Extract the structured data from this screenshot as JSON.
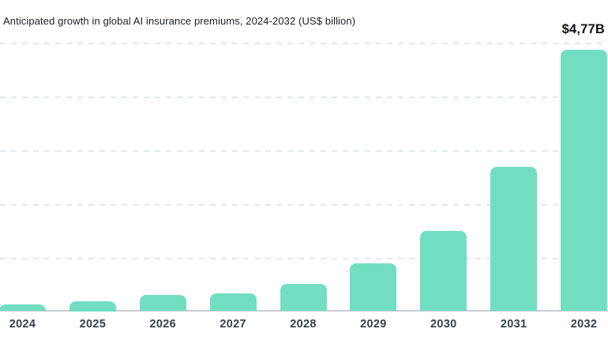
{
  "header": {
    "title": "Anticipated growth in global AI insurance premiums, 2024-2032 (US$ billion)",
    "peak_label": "$4,77B"
  },
  "chart_data": {
    "type": "bar",
    "title": "Anticipated growth in global AI insurance premiums, 2024-2032 (US$ billion)",
    "unit": "US$ billion",
    "categories": [
      "2024",
      "2025",
      "2026",
      "2027",
      "2028",
      "2029",
      "2030",
      "2031",
      "2032"
    ],
    "values": [
      0.12,
      0.18,
      0.29,
      0.32,
      0.5,
      0.87,
      1.47,
      2.63,
      4.77
    ],
    "xlabel": "",
    "ylabel": "",
    "ylim": [
      0,
      5
    ],
    "y_axis_labels_visible": false,
    "gridlines": {
      "visible": true,
      "style": "dashed",
      "interval": 1,
      "values": [
        1,
        2,
        3,
        4,
        5
      ]
    },
    "legend": "none",
    "annotations": [
      {
        "text": "$4,77B",
        "target_category": "2032",
        "position": "top-right-above-last-bar"
      }
    ],
    "colors": {
      "bar": "#72dec1",
      "gridline": "#e2e8ee",
      "axis_line": "#c9ced6",
      "x_tick_label": "#33414f",
      "title": "#1b2026",
      "annotation": "#10141a"
    }
  }
}
